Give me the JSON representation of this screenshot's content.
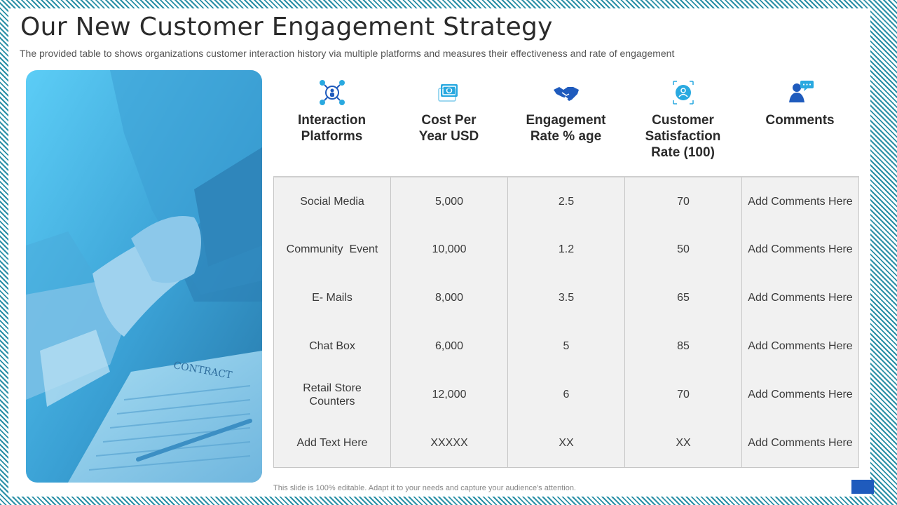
{
  "slide": {
    "title": "Our New Customer Engagement Strategy",
    "subtitle": "The provided table to shows organizations customer interaction history via multiple platforms and measures their effectiveness and rate of engagement",
    "footer_note": "This slide is 100% editable. Adapt it to your needs and capture your audience's attention.",
    "photo_caption_text": "CONTRACT"
  },
  "colors": {
    "accent_blue": "#1f5bbd",
    "photo_tint": "#3aa8dc",
    "icon_cyan": "#29a9e0",
    "table_bg": "#f1f1f1",
    "border_hatch": "#2a8fa6"
  },
  "table": {
    "columns": [
      {
        "label": "Interaction\nPlatforms",
        "icon": "network-people-icon"
      },
      {
        "label": "Cost Per\nYear USD",
        "icon": "money-bill-icon"
      },
      {
        "label": "Engagement\nRate % age",
        "icon": "handshake-icon"
      },
      {
        "label": "Customer\nSatisfaction\nRate (100)",
        "icon": "customer-badge-icon"
      },
      {
        "label": "Comments",
        "icon": "user-speech-bubble-icon"
      }
    ],
    "rows": [
      [
        "Social Media",
        "5,000",
        "2.5",
        "70",
        "Add Comments Here"
      ],
      [
        "Community  Event",
        "10,000",
        "1.2",
        "50",
        "Add Comments Here"
      ],
      [
        "E- Mails",
        "8,000",
        "3.5",
        "65",
        "Add Comments Here"
      ],
      [
        "Chat Box",
        "6,000",
        "5",
        "85",
        "Add Comments Here"
      ],
      [
        "Retail Store Counters",
        "12,000",
        "6",
        "70",
        "Add Comments Here"
      ],
      [
        "Add Text Here",
        "XXXXX",
        "XX",
        "XX",
        "Add Comments Here"
      ]
    ]
  }
}
